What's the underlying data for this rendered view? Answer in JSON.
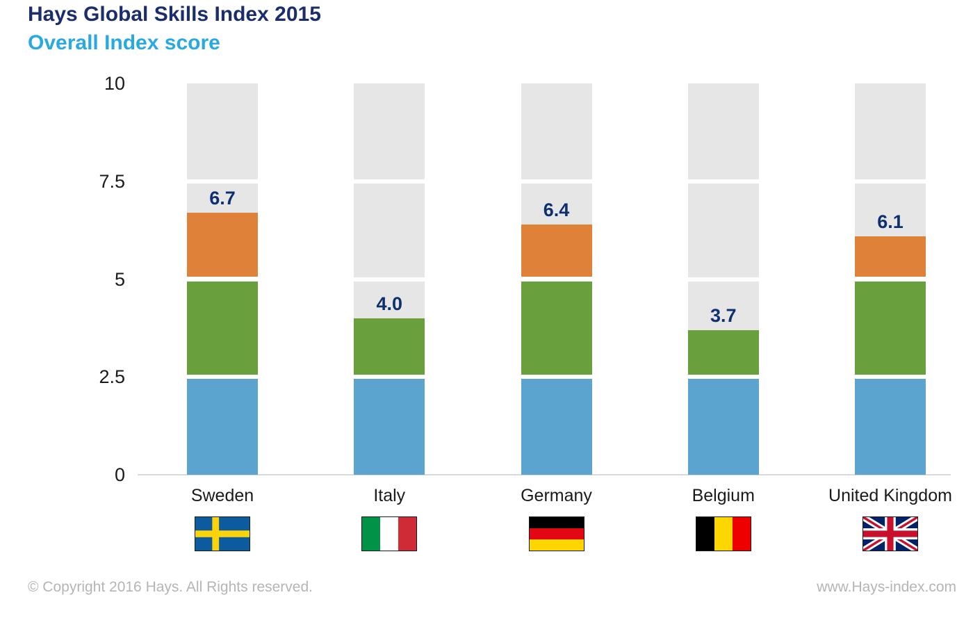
{
  "header": {
    "title": "Hays Global Skills Index 2015",
    "subtitle": "Overall Index score",
    "title_color": "#1b2d6b",
    "subtitle_color": "#29a9e1"
  },
  "chart_data": {
    "type": "bar",
    "title": "Hays Global Skills Index 2015",
    "subtitle": "Overall Index score",
    "categories": [
      "Sweden",
      "Italy",
      "Germany",
      "Belgium",
      "United Kingdom"
    ],
    "values": [
      6.7,
      4.0,
      6.4,
      3.7,
      6.1
    ],
    "value_labels": [
      "6.7",
      "4.0",
      "6.4",
      "3.7",
      "6.1"
    ],
    "ylim": [
      0,
      10
    ],
    "yticks": [
      10,
      7.5,
      5,
      2.5,
      0
    ],
    "ytick_labels": [
      "10",
      "7.5",
      "5",
      "2.5",
      "0"
    ],
    "grid": false,
    "legend_position": "none",
    "bar_style": "each bar is banded: blue 0-2.5, green 2.5-5, orange 5-7.5, light grey track fills the remainder up to 10, with small white gaps at every 2.5 gridline",
    "colors": {
      "segment_0_to_2_5": "#5ba4cf",
      "segment_2_5_to_5": "#6aa03c",
      "segment_5_to_7_5": "#e0813a",
      "track_remainder": "#e6e6e6",
      "value_label": "#0f3070",
      "axis_line": "#d9d9d9",
      "tick_label": "#1a1a1a"
    },
    "flags": [
      {
        "country": "Sweden",
        "type": "nordic-cross",
        "field": "#0d5a9e",
        "cross": "#fcd20a"
      },
      {
        "country": "Italy",
        "type": "vertical-tricolor",
        "stripes": [
          "#009246",
          "#ffffff",
          "#ce2b37"
        ]
      },
      {
        "country": "Germany",
        "type": "horizontal-tricolor",
        "stripes": [
          "#000000",
          "#e30613",
          "#ffd500"
        ]
      },
      {
        "country": "Belgium",
        "type": "vertical-tricolor",
        "stripes": [
          "#000000",
          "#ffd700",
          "#ee0000"
        ]
      },
      {
        "country": "United Kingdom",
        "type": "union-jack",
        "field": "#012169",
        "cross_red": "#c8102e",
        "cross_white": "#ffffff"
      }
    ]
  },
  "footer": {
    "copyright": "© Copyright 2016 Hays. All Rights reserved.",
    "website": "www.Hays-index.com"
  }
}
